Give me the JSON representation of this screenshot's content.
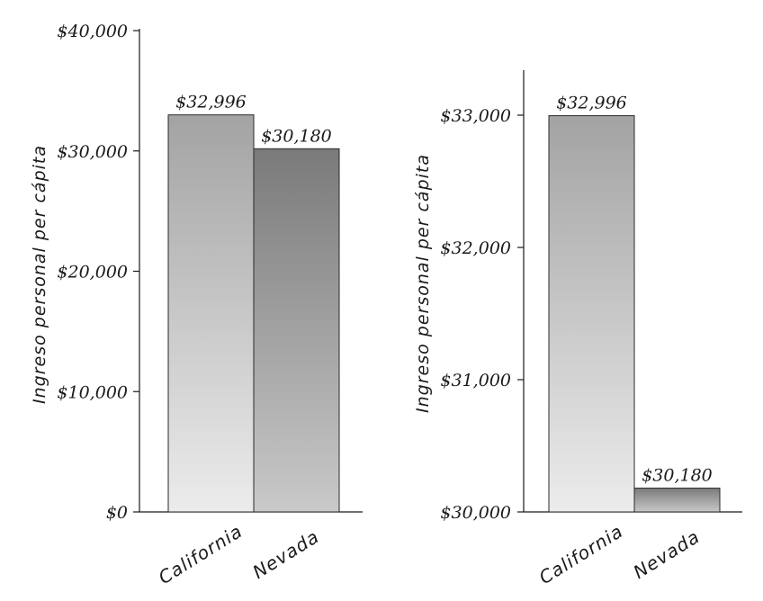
{
  "chart_data": [
    {
      "type": "bar",
      "categories": [
        "California",
        "Nevada"
      ],
      "values": [
        32996,
        30180
      ],
      "value_labels": [
        "$32,996",
        "$30,180"
      ],
      "ylabel": "Ingreso personal per cápita",
      "ylim": [
        0,
        40000
      ],
      "yticks": [
        0,
        10000,
        20000,
        30000,
        40000
      ],
      "ytick_labels": [
        "$0",
        "$10,000",
        "$20,000",
        "$30,000",
        "$40,000"
      ],
      "grid": false,
      "bar_colors": [
        "#b4b4b4",
        "#8e8e8e"
      ]
    },
    {
      "type": "bar",
      "categories": [
        "California",
        "Nevada"
      ],
      "values": [
        32996,
        30180
      ],
      "value_labels": [
        "$32,996",
        "$30,180"
      ],
      "ylabel": "Ingreso personal per cápita",
      "ylim": [
        30000,
        33300
      ],
      "yticks": [
        30000,
        31000,
        32000,
        33000
      ],
      "ytick_labels": [
        "$30,000",
        "$31,000",
        "$32,000",
        "$33,000"
      ],
      "grid": false,
      "bar_colors": [
        "#b9b9b9",
        "#8a8a8a"
      ]
    }
  ]
}
